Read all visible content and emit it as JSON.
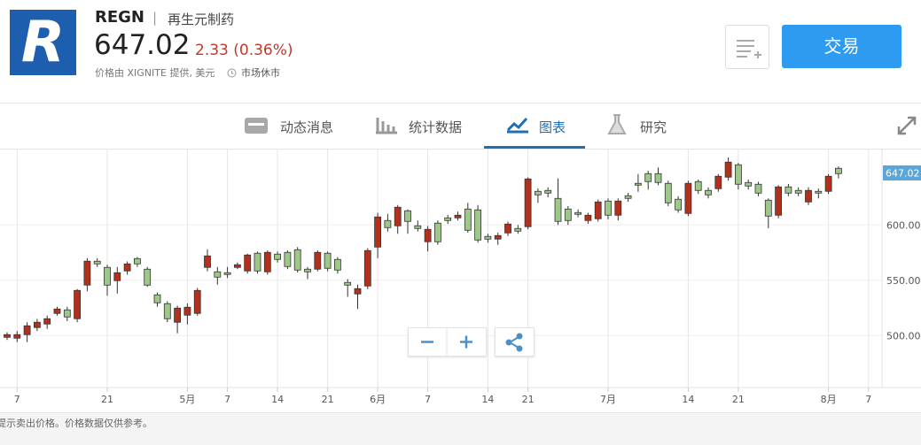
{
  "header": {
    "logo_letter": "R",
    "ticker": "REGN",
    "separator": "|",
    "company": "再生元制药",
    "price": "647.02",
    "change": "2.33 (0.36%)",
    "source": "价格由 XIGNITE 提供, 美元",
    "market_status": "市场休市"
  },
  "trade_button": "交易",
  "tabs": [
    "动态消息",
    "统计数据",
    "图表",
    "研究"
  ],
  "footer_note": "提示卖出价格。价格数据仅供参考。",
  "chart_data": {
    "type": "candlestick",
    "up_color": "#b3301c",
    "down_color": "#9dc889",
    "last_price": 647.02,
    "categories": [
      null,
      "7",
      null,
      null,
      null,
      null,
      null,
      null,
      null,
      null,
      "21",
      null,
      null,
      null,
      null,
      null,
      null,
      null,
      "5月",
      null,
      null,
      null,
      "7",
      null,
      null,
      null,
      null,
      "14",
      null,
      null,
      null,
      null,
      "21",
      null,
      null,
      null,
      null,
      "6月",
      null,
      null,
      null,
      null,
      "7",
      null,
      null,
      null,
      null,
      null,
      "14",
      null,
      null,
      null,
      "21",
      null,
      null,
      null,
      null,
      null,
      null,
      null,
      "7月",
      null,
      null,
      null,
      null,
      null,
      null,
      null,
      "14",
      null,
      null,
      null,
      null,
      "21",
      null,
      null,
      null,
      null,
      null,
      null,
      null,
      null,
      "8月",
      null,
      null,
      null,
      "7"
    ],
    "open": [
      498.4,
      497.6,
      500.8,
      507.2,
      510.4,
      520,
      523.2,
      515.2,
      545.6,
      567.2,
      561.6,
      549.6,
      558.4,
      569.6,
      560,
      536.8,
      528.8,
      512,
      518.4,
      520,
      561.6,
      557.6,
      556.8,
      561.6,
      558.4,
      574.4,
      557.6,
      573.6,
      575.2,
      577.6,
      560,
      560,
      574.4,
      568.8,
      548,
      537.6,
      544.8,
      580,
      604,
      599.2,
      612.8,
      599.2,
      584.8,
      601.6,
      606.4,
      606.4,
      614.4,
      613.6,
      589.6,
      587.2,
      592.8,
      596.8,
      598.4,
      630.4,
      631.2,
      624,
      614.4,
      611.2,
      604,
      605.6,
      621.6,
      608.8,
      626.4,
      637.6,
      646.4,
      646.4,
      637.6,
      623.2,
      610.4,
      639.2,
      631.2,
      632.8,
      643.2,
      654.4,
      638.4,
      636.8,
      622.4,
      608.8,
      634.4,
      631.2,
      620.8,
      630.4,
      630.4,
      651.2,
      null,
      null,
      null
    ],
    "high": [
      503,
      504,
      512,
      515,
      518,
      526,
      526,
      542,
      570,
      570,
      564,
      562,
      567,
      571,
      562,
      539,
      531,
      527,
      529,
      543,
      578,
      562,
      562,
      566,
      574,
      576,
      577,
      576,
      577,
      580,
      562,
      577,
      576,
      571,
      551,
      546,
      579,
      611,
      610,
      618,
      614,
      604,
      599,
      604,
      609,
      612,
      620,
      618,
      592,
      593,
      603,
      600,
      643,
      633,
      634,
      642,
      617,
      614,
      611,
      623,
      624,
      624,
      629,
      646,
      649,
      652,
      640,
      626,
      640,
      641,
      634,
      646,
      661,
      656,
      641,
      639,
      624,
      636,
      637,
      634,
      634,
      633,
      646,
      653,
      null,
      null,
      null
    ],
    "low": [
      496,
      494,
      494,
      504,
      506,
      518,
      513,
      512,
      540,
      562,
      536,
      538,
      555,
      562,
      544,
      526,
      512,
      502,
      510,
      518,
      558,
      546,
      552,
      560,
      556,
      556,
      555,
      566,
      560,
      557,
      551,
      558,
      558,
      556,
      535,
      524,
      542,
      570,
      594,
      592,
      592,
      594,
      576,
      582,
      601,
      604,
      593,
      584,
      584,
      582,
      590,
      592,
      596,
      620,
      625,
      600,
      600,
      607,
      601,
      603,
      605,
      604,
      621,
      630,
      632,
      636,
      617,
      611,
      608,
      628,
      624,
      630,
      640,
      632,
      632,
      626,
      597,
      606,
      626,
      626,
      618,
      624,
      628,
      642,
      null,
      null,
      null
    ],
    "close": [
      500.8,
      500.8,
      508.8,
      512,
      515.2,
      524,
      516.8,
      540.8,
      567.2,
      564.8,
      545.6,
      556.8,
      564.8,
      564.8,
      545.6,
      529.6,
      515.2,
      524.8,
      525.6,
      540.8,
      572,
      552.8,
      555.2,
      564,
      572.8,
      558.4,
      575.2,
      568.8,
      562.4,
      559.2,
      557.6,
      575.2,
      560.8,
      559.2,
      545.6,
      542.4,
      576.8,
      607.2,
      597.6,
      616,
      603.2,
      596.8,
      596,
      584.8,
      604,
      608.8,
      595.2,
      586.4,
      587.2,
      590.4,
      600.8,
      594.4,
      641.6,
      627.2,
      628.8,
      603.2,
      604,
      609.6,
      608.8,
      620.8,
      608.8,
      621.6,
      624,
      636,
      639.2,
      638.4,
      620,
      613.6,
      637.6,
      631.2,
      627.2,
      644,
      656.8,
      636.8,
      635.2,
      628.8,
      608,
      634.4,
      628.8,
      628.8,
      631.2,
      628.8,
      644,
      646.4,
      null,
      null,
      null
    ],
    "ylim": [
      453,
      669
    ],
    "yticks": [
      {
        "value": 500,
        "label": "500.00"
      },
      {
        "value": 550,
        "label": "550.00"
      },
      {
        "value": 600,
        "label": "600.00"
      }
    ],
    "grid": true
  }
}
